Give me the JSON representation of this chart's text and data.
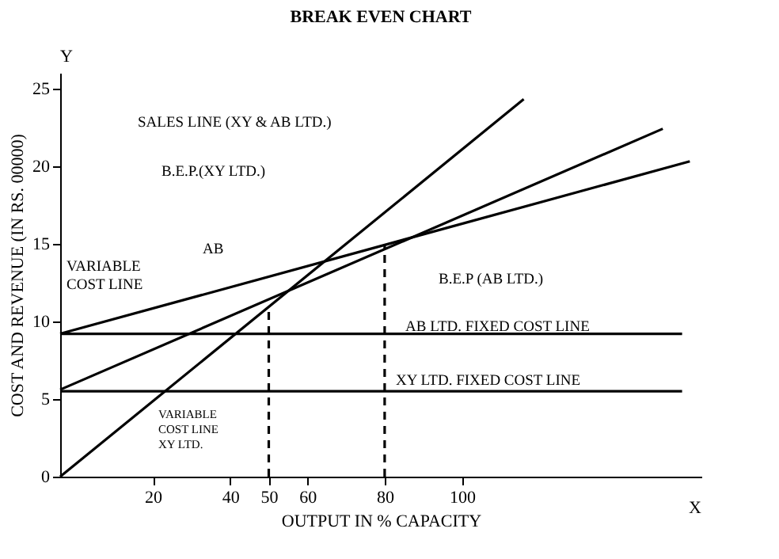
{
  "chart_data": {
    "type": "line",
    "title": "BREAK EVEN CHART",
    "xlabel": "OUTPUT IN % CAPACITY",
    "ylabel": "COST AND REVENUE (IN RS. 00000)",
    "xlim": [
      -4,
      162
    ],
    "ylim": [
      0,
      26
    ],
    "xticks": [
      20,
      40,
      50,
      60,
      80,
      100
    ],
    "yticks": [
      0,
      5,
      10,
      15,
      20,
      25
    ],
    "grid": false,
    "series": [
      {
        "color": "#000000",
        "x": [
          -4,
          116
        ],
        "values": [
          0,
          24.3
        ],
        "line_style": "solid"
      },
      {
        "color": "#000000",
        "x": [
          -4,
          159
        ],
        "values": [
          9.2,
          20.3
        ],
        "line_style": "solid"
      },
      {
        "color": "#000000",
        "x": [
          -4,
          152
        ],
        "values": [
          5.6,
          22.4
        ],
        "line_style": "solid"
      },
      {
        "color": "#000000",
        "x": [
          -4,
          157
        ],
        "values": [
          9.2,
          9.2
        ],
        "line_style": "solid"
      },
      {
        "color": "#000000",
        "x": [
          -4,
          157
        ],
        "values": [
          5.5,
          5.5
        ],
        "line_style": "solid"
      },
      {
        "color": "#000000",
        "x": [
          50,
          50
        ],
        "values": [
          0,
          10.9
        ],
        "line_style": "dashed"
      },
      {
        "color": "#000000",
        "x": [
          80,
          80
        ],
        "values": [
          0,
          14.9
        ],
        "line_style": "dashed"
      }
    ],
    "annotations": [
      "SALES LINE (XY & AB LTD.)",
      "B.E.P.(XY LTD.)",
      "AB",
      "VARIABLE\nCOST LINE",
      "VARIABLE\nCOST LINE\nXY LTD.",
      "B.E.P (AB LTD.)",
      "AB LTD. FIXED COST LINE",
      "XY LTD. FIXED COST LINE",
      "X",
      "Y"
    ]
  }
}
